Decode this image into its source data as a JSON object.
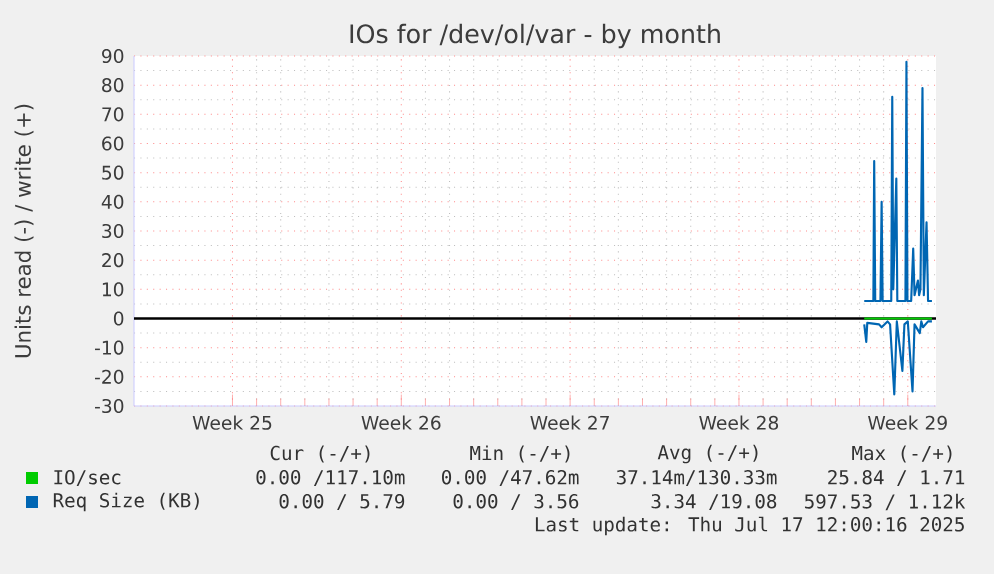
{
  "chart_data": {
    "type": "line",
    "title": "IOs for /dev/ol/var - by month",
    "ylabel": "Units read (-) / write (+)",
    "xlim": [
      "2025-06-11T22:01",
      "2025-07-15T04:04"
    ],
    "xticks": [
      {
        "value": "2025-06-16",
        "label": "Week 25"
      },
      {
        "value": "2025-06-23",
        "label": "Week 26"
      },
      {
        "value": "2025-06-30",
        "label": "Week 27"
      },
      {
        "value": "2025-07-07",
        "label": "Week 28"
      },
      {
        "value": "2025-07-14",
        "label": "Week 29"
      }
    ],
    "ylim": [
      -30,
      90
    ],
    "yticks": [
      -30,
      -20,
      -10,
      0,
      10,
      20,
      30,
      40,
      50,
      60,
      70,
      80,
      90
    ],
    "grid": true,
    "legend": "bottom",
    "ref_lines": [
      {
        "axis": "y",
        "value": 0,
        "color": "#000000"
      }
    ],
    "series": [
      {
        "name": "IO/sec",
        "color": "#00cc00",
        "x": [
          "2025-07-12T04:40",
          "2025-07-13T10:34",
          "2025-07-15T00:01"
        ],
        "values": [
          0,
          0,
          0
        ]
      },
      {
        "name": "Req Size (KB)",
        "color": "#0066b3",
        "x": [
          "2025-07-12T04:40",
          "2025-07-12T13:44",
          "2025-07-12T14:34",
          "2025-07-12T15:35",
          "2025-07-12T20:47",
          "2025-07-12T21:58",
          "2025-07-12T22:58",
          "2025-07-13T07:32",
          "2025-07-13T08:32",
          "2025-07-13T09:33",
          "2025-07-13T12:35",
          "2025-07-13T13:35",
          "2025-07-13T21:39",
          "2025-07-13T22:40",
          "2025-07-13T23:40",
          "2025-07-14T03:22",
          "2025-07-14T05:23",
          "2025-07-14T06:43",
          "2025-07-14T10:05",
          "2025-07-14T11:15",
          "2025-07-14T12:36",
          "2025-07-14T14:37",
          "2025-07-14T15:58",
          "2025-07-14T18:39",
          "2025-07-14T20:10",
          "2025-07-15T00:01"
        ],
        "values": [
          6,
          6,
          54,
          6,
          6,
          40,
          6,
          6,
          76,
          10,
          48,
          6,
          6,
          88,
          6,
          6,
          24,
          8,
          13,
          8,
          10,
          79,
          8,
          33,
          6,
          6
        ]
      },
      {
        "color": "#0066b3",
        "x": [
          "2025-07-12T04:40",
          "2025-07-12T06:40",
          "2025-07-12T07:41",
          "2025-07-12T19:26",
          "2025-07-12T21:58",
          "2025-07-13T03:50",
          "2025-07-13T06:22",
          "2025-07-13T10:34",
          "2025-07-13T13:05",
          "2025-07-13T18:37",
          "2025-07-13T20:38",
          "2025-07-14T00:00",
          "2025-07-14T04:42",
          "2025-07-14T06:43",
          "2025-07-14T11:56",
          "2025-07-14T13:26",
          "2025-07-14T15:07",
          "2025-07-14T20:10",
          "2025-07-15T00:01"
        ],
        "values": [
          -2,
          -8,
          -1.5,
          -2,
          -3,
          -1,
          -2,
          -26,
          -1,
          -18,
          -2,
          -1,
          -25,
          -2,
          -5,
          -1,
          -3,
          -1,
          -1
        ]
      }
    ],
    "annotations": [
      "Cur (-/+)",
      "Min (-/+)",
      "Avg (-/+)",
      "Max (-/+)",
      "0.00 /117.10m",
      "0.00 /47.62m",
      "37.14m/130.33m",
      "25.84 / 1.71",
      "0.00 / 5.79",
      "0.00 / 3.56",
      "3.34 /19.08",
      "597.53 / 1.12k",
      "Last update: Thu Jul 17 12:00:16 2025"
    ]
  }
}
